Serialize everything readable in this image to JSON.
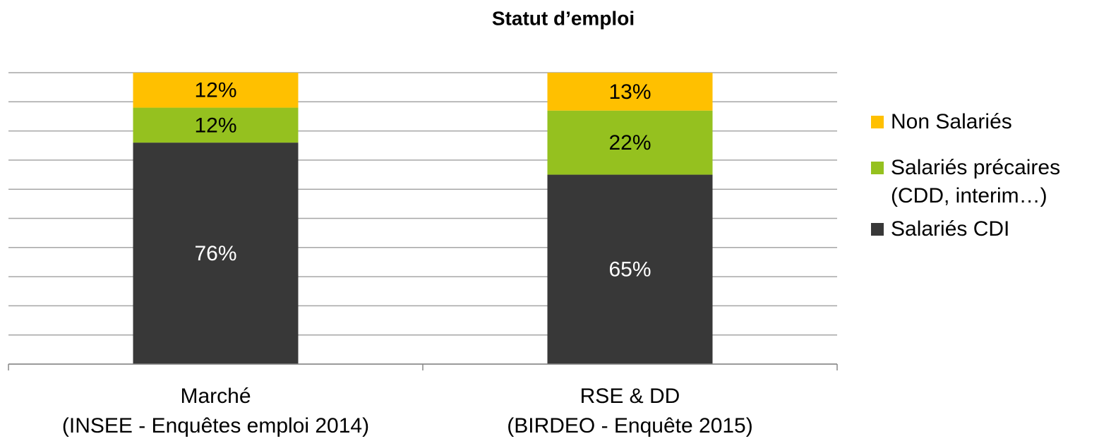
{
  "chart_data": {
    "type": "stacked_bar",
    "title": "Statut d’emploi",
    "categories": [
      "Marché\n(INSEE - Enquêtes emploi 2014)",
      "RSE & DD\n(BIRDEO - Enquête 2015)"
    ],
    "series": [
      {
        "name": "Salariés CDI",
        "color": "#383838",
        "values": [
          76,
          65
        ],
        "value_labels": [
          "76%",
          "65%"
        ]
      },
      {
        "name": "Salariés précaires\n(CDD, interim…)",
        "color": "#95c11f",
        "values": [
          12,
          22
        ],
        "value_labels": [
          "12%",
          "22%"
        ]
      },
      {
        "name": "Non Salariés",
        "color": "#ffc000",
        "values": [
          12,
          13
        ],
        "value_labels": [
          "12%",
          "13%"
        ]
      }
    ],
    "ylim": [
      0,
      100
    ],
    "yticks": [
      0,
      10,
      20,
      30,
      40,
      50,
      60,
      70,
      80,
      90,
      100
    ],
    "grid": true,
    "legend": "right"
  }
}
